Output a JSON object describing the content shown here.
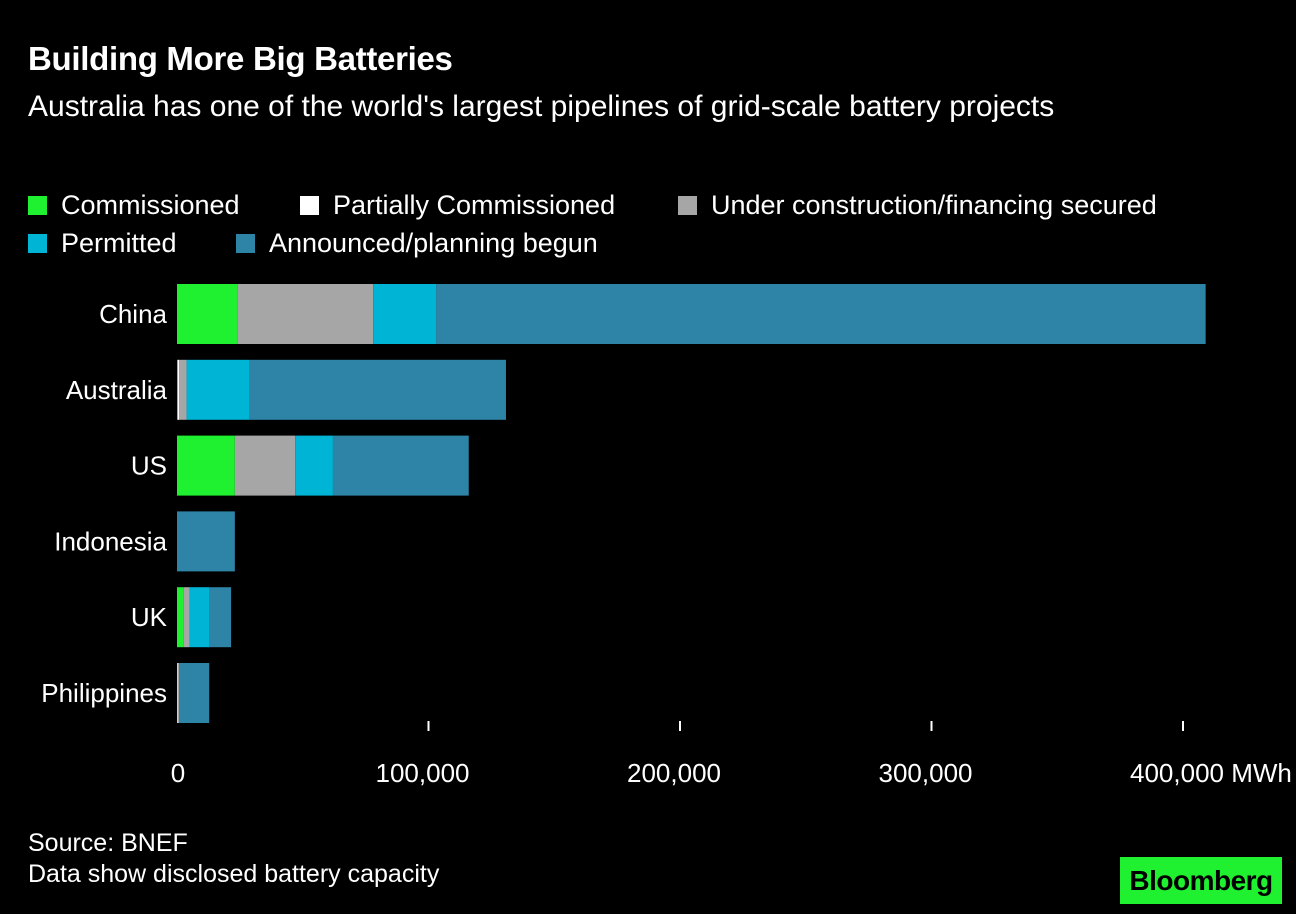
{
  "header": {
    "title": "Building More Big Batteries",
    "subtitle": "Australia has one of the world's largest pipelines of grid-scale battery projects"
  },
  "legend": [
    {
      "label": "Commissioned",
      "color": "#1ff02f"
    },
    {
      "label": "Partially Commissioned",
      "color": "#ffffff"
    },
    {
      "label": "Under construction/financing secured",
      "color": "#a6a6a6"
    },
    {
      "label": "Permitted",
      "color": "#00b4d6"
    },
    {
      "label": "Announced/planning begun",
      "color": "#2e84a6"
    }
  ],
  "chart_data": {
    "type": "bar",
    "orientation": "horizontal",
    "stacked": true,
    "title": "Building More Big Batteries",
    "subtitle": "Australia has one of the world's largest pipelines of grid-scale battery projects",
    "categories": [
      "China",
      "Australia",
      "US",
      "Indonesia",
      "UK",
      "Philippines"
    ],
    "series": [
      {
        "name": "Commissioned",
        "color": "#1ff02f",
        "values": [
          24000,
          300,
          23000,
          0,
          2500,
          0
        ]
      },
      {
        "name": "Partially Commissioned",
        "color": "#ffffff",
        "values": [
          0,
          500,
          0,
          0,
          0,
          300
        ]
      },
      {
        "name": "Under construction/financing secured",
        "color": "#a6a6a6",
        "values": [
          54000,
          3000,
          24000,
          0,
          2500,
          500
        ]
      },
      {
        "name": "Permitted",
        "color": "#00b4d6",
        "values": [
          25000,
          25000,
          15000,
          0,
          8000,
          0
        ]
      },
      {
        "name": "Announced/planning begun",
        "color": "#2e84a6",
        "values": [
          306000,
          102000,
          54000,
          23000,
          8500,
          12000
        ]
      }
    ],
    "xlim": [
      0,
      410000
    ],
    "xticks": [
      0,
      100000,
      200000,
      300000,
      400000
    ],
    "xtick_labels": [
      "0",
      "100,000",
      "200,000",
      "300,000",
      "400,000 MWh"
    ],
    "xlabel": "",
    "ylabel": "",
    "grid": false,
    "legend_position": "top"
  },
  "footer": {
    "source": "Source: BNEF",
    "note": "Data show disclosed battery capacity",
    "logo": "Bloomberg"
  }
}
